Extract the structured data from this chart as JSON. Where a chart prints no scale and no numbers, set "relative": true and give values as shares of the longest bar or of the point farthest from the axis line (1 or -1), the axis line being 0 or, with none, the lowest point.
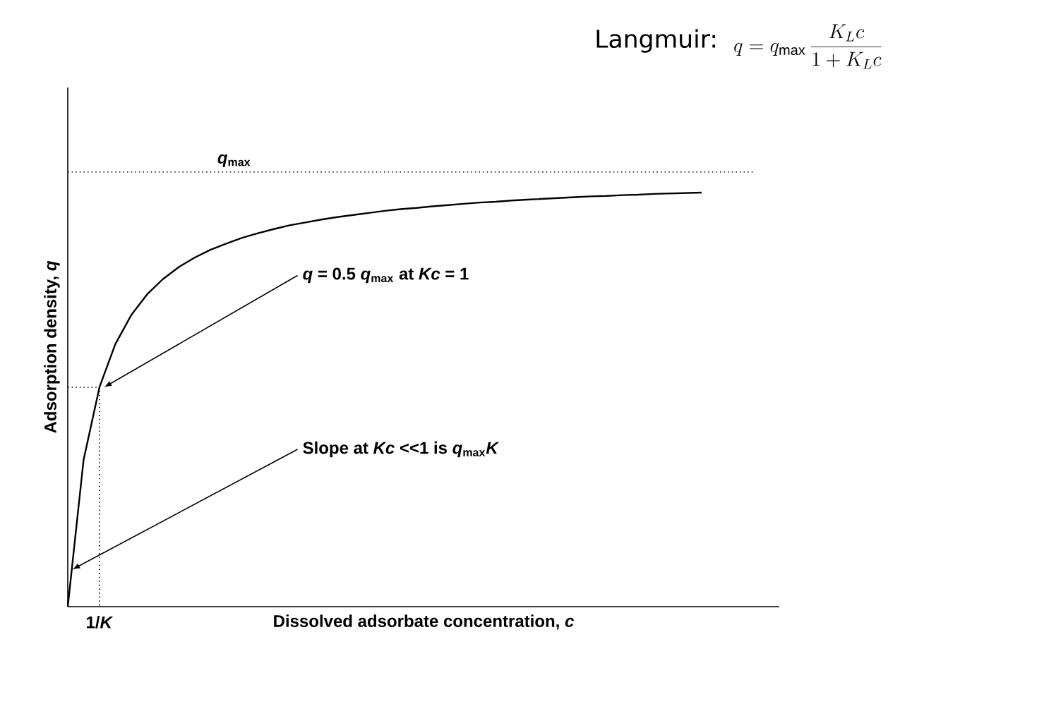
{
  "chart_data": {
    "type": "line",
    "relative": true,
    "xlabel": "Dissolved adsorbate concentration, *c*",
    "ylabel": "Adsorption density, *q*",
    "categories": [
      null,
      null,
      null,
      null,
      null,
      null,
      null,
      null,
      null,
      null,
      null,
      null,
      null,
      null,
      null,
      null,
      null,
      null,
      null,
      null,
      null,
      null,
      null,
      null,
      null,
      null,
      null,
      null,
      null,
      null,
      null,
      null,
      null,
      null,
      null,
      null,
      null,
      null,
      null,
      null,
      null
    ],
    "series": [
      {
        "color": "#000000",
        "values": [
          0,
          0.355,
          0.53,
          0.634,
          0.704,
          0.754,
          0.791,
          0.82,
          0.843,
          0.862,
          0.877,
          0.891,
          0.902,
          0.912,
          0.921,
          0.928,
          0.935,
          0.941,
          0.946,
          0.951,
          0.956,
          0.96,
          0.963,
          0.967,
          0.97,
          0.973,
          0.976,
          0.978,
          0.981,
          0.983,
          0.985,
          0.987,
          0.989,
          0.991,
          0.992,
          0.994,
          0.995,
          0.997,
          0.998,
          0.999,
          1
        ]
      }
    ],
    "marker": "none",
    "line_style": "solid",
    "ref_lines": [
      {
        "axis": "y",
        "value": 1.05,
        "label": "*q*$_{max}$",
        "line_style": "dotted",
        "color": "#000000"
      }
    ],
    "annotations": [
      "Langmuir:",
      "q = q_{\\max}\\,\\frac{K_L c}{1+K_L c}",
      "*q* = 0.5 *q*$_{max}$ at *Kc* = 1",
      "Slope at *Kc* <<1 is *q*$_{max}$*K*",
      "1/*K*"
    ]
  }
}
